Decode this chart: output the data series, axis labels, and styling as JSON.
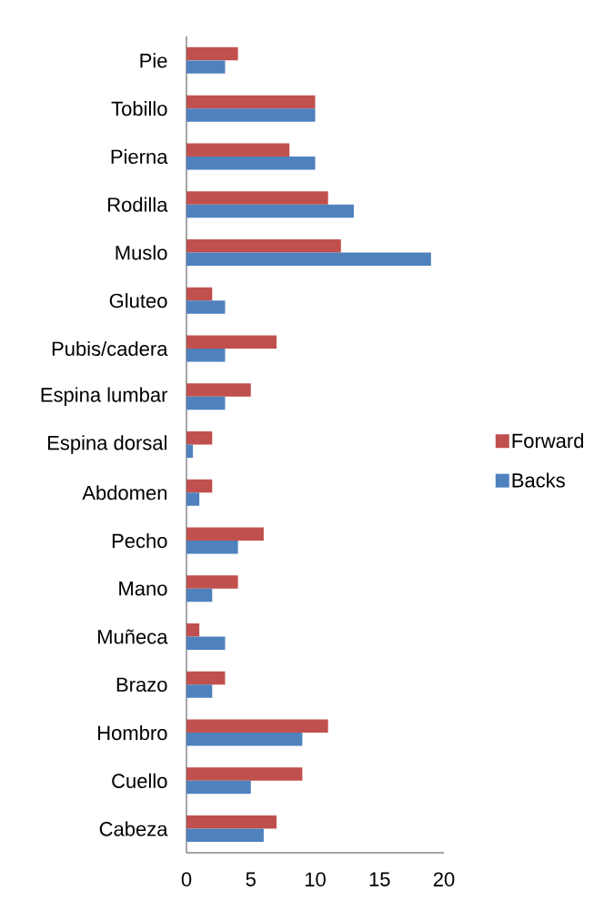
{
  "chart_data": {
    "type": "bar",
    "orientation": "horizontal",
    "categories": [
      "Pie",
      "Tobillo",
      "Pierna",
      "Rodilla",
      "Muslo",
      "Gluteo",
      "Pubis/cadera",
      "Espina lumbar",
      "Espina dorsal",
      "Abdomen",
      "Pecho",
      "Mano",
      "Muñeca",
      "Brazo",
      "Hombro",
      "Cuello",
      "Cabeza"
    ],
    "series": [
      {
        "name": "Forward",
        "color": "#c0504d",
        "values": [
          4,
          10,
          8,
          11,
          12,
          2,
          7,
          5,
          2,
          2,
          6,
          4,
          1,
          3,
          11,
          9,
          7
        ]
      },
      {
        "name": "Backs",
        "color": "#4f81bd",
        "values": [
          3,
          10,
          10,
          13,
          19,
          3,
          3,
          3,
          0.5,
          1,
          4,
          2,
          3,
          2,
          9,
          5,
          6
        ]
      }
    ],
    "xlim": [
      0,
      20
    ],
    "xticks": [
      0,
      5,
      10,
      15,
      20
    ],
    "legend": "right"
  }
}
